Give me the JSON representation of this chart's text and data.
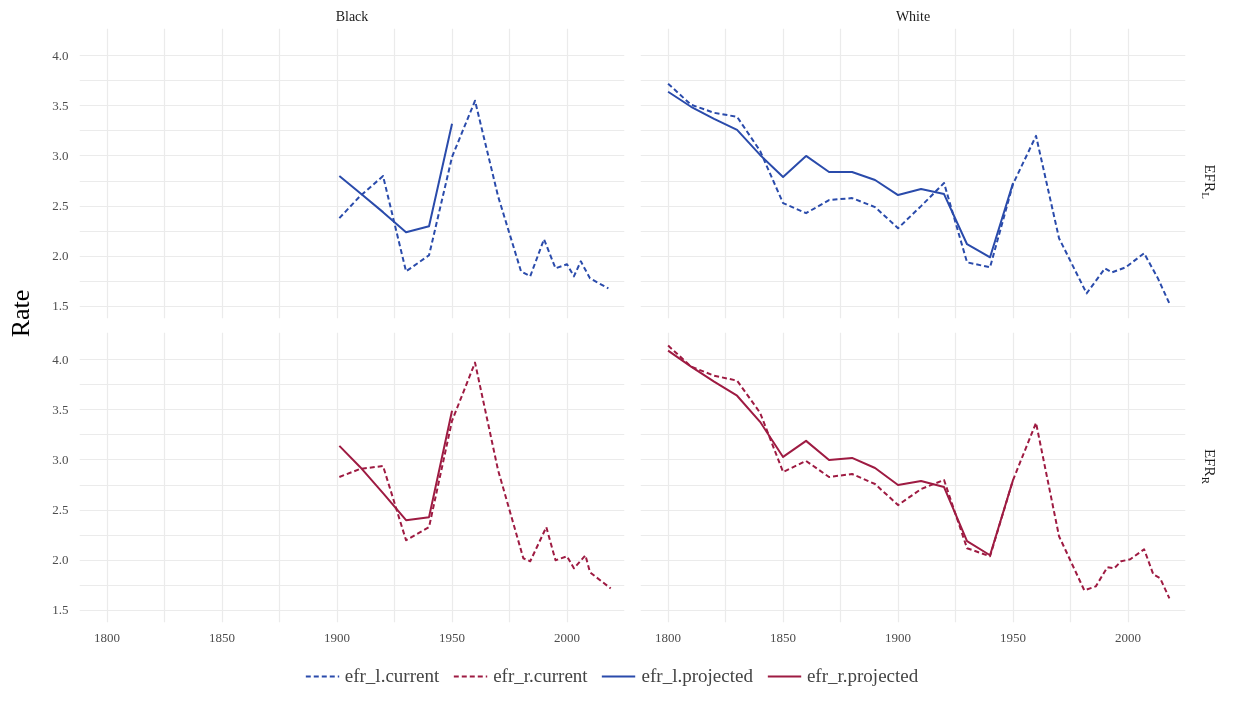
{
  "chart_data": [
    {
      "type": "line",
      "title": "Black",
      "ylabel": "Rate",
      "xlim": [
        1788,
        2025
      ],
      "ylim": [
        1.38,
        4.27
      ],
      "xticks": [
        1800,
        {
          "value": 1825,
          "label": null
        },
        1850,
        {
          "value": 1875,
          "label": null
        },
        1900,
        {
          "value": 1925,
          "label": null
        },
        1950,
        {
          "value": 1975,
          "label": null
        },
        2000
      ],
      "yticks": [
        1.5,
        {
          "value": 1.75,
          "label": null
        },
        {
          "value": 2,
          "label": "2.0"
        },
        {
          "value": 2.25,
          "label": null
        },
        2.5,
        {
          "value": 2.75,
          "label": null
        },
        {
          "value": 3,
          "label": "3.0"
        },
        {
          "value": 3.25,
          "label": null
        },
        3.5,
        {
          "value": 3.75,
          "label": null
        },
        {
          "value": 4,
          "label": "4.0"
        }
      ],
      "grid": true,
      "tick_labels": "y",
      "legend": "bottom",
      "series": [
        {
          "name": "efr_l.current",
          "color": "#2a4bab",
          "line_style": "dashed",
          "x": [
            1901,
            1910,
            1920,
            1930,
            1940,
            1950,
            1960,
            1970,
            1980,
            1984,
            1990,
            1995,
            2000,
            2003,
            2006,
            2010,
            2018
          ],
          "values": [
            2.38,
            2.6,
            2.8,
            1.85,
            2.01,
            2.99,
            3.55,
            2.6,
            1.85,
            1.8,
            2.17,
            1.88,
            1.92,
            1.8,
            1.95,
            1.78,
            1.68
          ]
        },
        {
          "name": "efr_l.projected",
          "color": "#2a4bab",
          "line_style": "solid",
          "x": [
            1901,
            1910,
            1920,
            1930,
            1940,
            1950
          ],
          "values": [
            2.8,
            2.63,
            2.44,
            2.24,
            2.3,
            3.32
          ]
        }
      ]
    },
    {
      "type": "line",
      "title": "White",
      "annotations": [
        "EFR$_{L}$"
      ],
      "xlim": [
        1788,
        2025
      ],
      "ylim": [
        1.38,
        4.27
      ],
      "xticks": [
        1800,
        {
          "value": 1825,
          "label": null
        },
        1850,
        {
          "value": 1875,
          "label": null
        },
        1900,
        {
          "value": 1925,
          "label": null
        },
        1950,
        {
          "value": 1975,
          "label": null
        },
        2000
      ],
      "yticks": [
        1.5,
        {
          "value": 1.75,
          "label": null
        },
        2.0,
        {
          "value": 2.25,
          "label": null
        },
        2.5,
        {
          "value": 2.75,
          "label": null
        },
        3.0,
        {
          "value": 3.25,
          "label": null
        },
        3.5,
        {
          "value": 3.75,
          "label": null
        },
        4.0
      ],
      "grid": true,
      "tick_labels": false,
      "series": [
        {
          "color": "#2a4bab",
          "line_style": "dashed",
          "x": [
            1800,
            1810,
            1820,
            1830,
            1840,
            1850,
            1860,
            1870,
            1880,
            1890,
            1900,
            1910,
            1920,
            1930,
            1940,
            1950,
            1960,
            1970,
            1982,
            1990,
            1993,
            1999,
            2007,
            2013,
            2018
          ],
          "values": [
            3.72,
            3.51,
            3.43,
            3.39,
            3.05,
            2.53,
            2.43,
            2.56,
            2.58,
            2.49,
            2.28,
            2.5,
            2.73,
            1.94,
            1.89,
            2.72,
            3.2,
            2.18,
            1.63,
            1.88,
            1.84,
            1.89,
            2.03,
            1.78,
            1.53
          ]
        },
        {
          "color": "#2a4bab",
          "line_style": "solid",
          "x": [
            1800,
            1810,
            1820,
            1830,
            1840,
            1850,
            1860,
            1870,
            1880,
            1890,
            1900,
            1910,
            1920,
            1930,
            1940,
            1950
          ],
          "values": [
            3.64,
            3.49,
            3.37,
            3.26,
            3.01,
            2.79,
            3.0,
            2.84,
            2.84,
            2.76,
            2.61,
            2.67,
            2.62,
            2.12,
            1.99,
            2.73
          ]
        }
      ]
    },
    {
      "type": "line",
      "xlim": [
        1788,
        2025
      ],
      "ylim": [
        1.38,
        4.27
      ],
      "xticks": [
        1800,
        {
          "value": 1825,
          "label": null
        },
        1850,
        {
          "value": 1875,
          "label": null
        },
        1900,
        {
          "value": 1925,
          "label": null
        },
        1950,
        {
          "value": 1975,
          "label": null
        },
        2000
      ],
      "yticks": [
        1.5,
        {
          "value": 1.75,
          "label": null
        },
        {
          "value": 2,
          "label": "2.0"
        },
        {
          "value": 2.25,
          "label": null
        },
        2.5,
        {
          "value": 2.75,
          "label": null
        },
        {
          "value": 3,
          "label": "3.0"
        },
        {
          "value": 3.25,
          "label": null
        },
        3.5,
        {
          "value": 3.75,
          "label": null
        },
        {
          "value": 4,
          "label": "4.0"
        }
      ],
      "grid": true,
      "legend": "bottom",
      "series": [
        {
          "name": "efr_r.current",
          "color": "#9e1b42",
          "line_style": "dashed",
          "x": [
            1901,
            1910,
            1920,
            1930,
            1940,
            1950,
            1960,
            1970,
            1981,
            1984,
            1991,
            1995,
            2000,
            2003,
            2008,
            2010,
            2019
          ],
          "values": [
            2.83,
            2.91,
            2.94,
            2.2,
            2.33,
            3.39,
            3.97,
            2.9,
            2.02,
            1.99,
            2.33,
            2.0,
            2.04,
            1.92,
            2.05,
            1.88,
            1.72
          ]
        },
        {
          "name": "efr_r.projected",
          "color": "#9e1b42",
          "line_style": "solid",
          "x": [
            1901,
            1910,
            1920,
            1930,
            1940,
            1950
          ],
          "values": [
            3.14,
            2.93,
            2.67,
            2.4,
            2.43,
            3.49
          ]
        }
      ]
    },
    {
      "type": "line",
      "annotations": [
        "EFR$_{R}$"
      ],
      "xlim": [
        1788,
        2025
      ],
      "ylim": [
        1.38,
        4.27
      ],
      "xticks": [
        1800,
        {
          "value": 1825,
          "label": null
        },
        1850,
        {
          "value": 1875,
          "label": null
        },
        1900,
        {
          "value": 1925,
          "label": null
        },
        1950,
        {
          "value": 1975,
          "label": null
        },
        2000
      ],
      "yticks": [
        1.5,
        {
          "value": 1.75,
          "label": null
        },
        2.0,
        {
          "value": 2.25,
          "label": null
        },
        2.5,
        {
          "value": 2.75,
          "label": null
        },
        3.0,
        {
          "value": 3.25,
          "label": null
        },
        3.5,
        {
          "value": 3.75,
          "label": null
        },
        4.0
      ],
      "grid": true,
      "tick_labels": "x",
      "series": [
        {
          "color": "#9e1b42",
          "line_style": "dashed",
          "x": [
            1800,
            1810,
            1820,
            1830,
            1840,
            1850,
            1860,
            1870,
            1880,
            1890,
            1900,
            1910,
            1920,
            1930,
            1940,
            1950,
            1960,
            1970,
            1981,
            1986,
            1991,
            1994,
            1997,
            2001,
            2007,
            2011,
            2014,
            2018
          ],
          "values": [
            4.14,
            3.93,
            3.84,
            3.79,
            3.47,
            2.88,
            2.99,
            2.83,
            2.86,
            2.76,
            2.55,
            2.71,
            2.8,
            2.12,
            2.04,
            2.8,
            3.37,
            2.24,
            1.7,
            1.74,
            1.93,
            1.92,
            1.99,
            2.01,
            2.11,
            1.86,
            1.82,
            1.62
          ]
        },
        {
          "color": "#9e1b42",
          "line_style": "solid",
          "x": [
            1800,
            1810,
            1820,
            1830,
            1840,
            1850,
            1860,
            1870,
            1880,
            1890,
            1900,
            1910,
            1920,
            1930,
            1940,
            1950
          ],
          "values": [
            4.09,
            3.93,
            3.78,
            3.64,
            3.38,
            3.03,
            3.19,
            3.0,
            3.02,
            2.92,
            2.75,
            2.79,
            2.73,
            2.19,
            2.05,
            2.8
          ]
        }
      ]
    }
  ]
}
